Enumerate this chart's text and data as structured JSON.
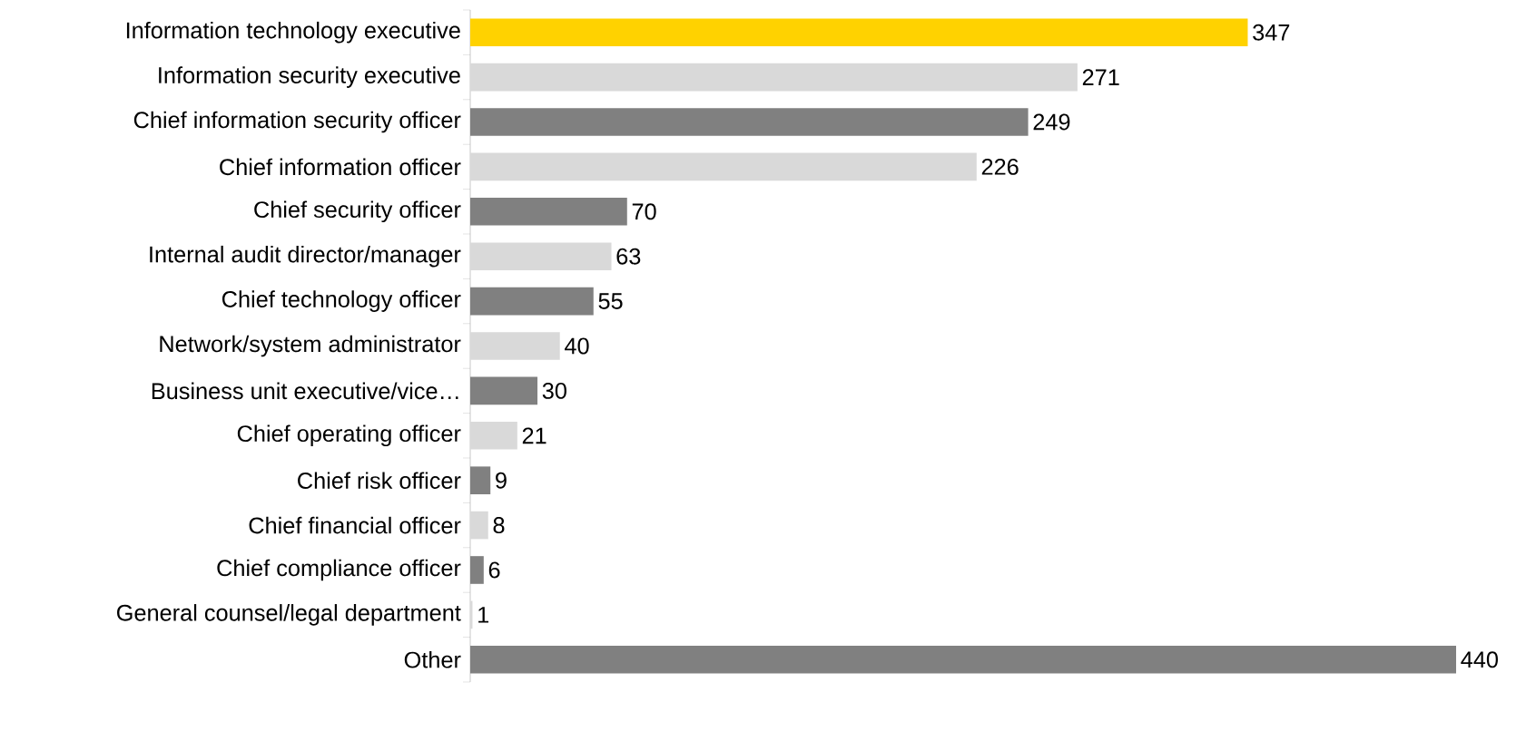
{
  "chart_data": {
    "type": "bar",
    "orientation": "horizontal",
    "data_labels": true,
    "categories": [
      "Information technology executive",
      "Information security executive",
      "Chief information security officer",
      "Chief information officer",
      "Chief security officer",
      "Internal audit director/manager",
      "Chief technology officer",
      "Network/system administrator",
      "Business unit executive/vice…",
      "Chief operating officer",
      "Chief risk officer",
      "Chief financial officer",
      "Chief compliance officer",
      "General counsel/legal department",
      "Other"
    ],
    "values": [
      347,
      271,
      249,
      226,
      70,
      63,
      55,
      40,
      30,
      21,
      9,
      8,
      6,
      1,
      440
    ],
    "colors": [
      "#ffd200",
      "#d9d9d9",
      "#808080",
      "#d9d9d9",
      "#808080",
      "#d9d9d9",
      "#808080",
      "#d9d9d9",
      "#808080",
      "#d9d9d9",
      "#808080",
      "#d9d9d9",
      "#808080",
      "#d9d9d9",
      "#808080"
    ]
  }
}
